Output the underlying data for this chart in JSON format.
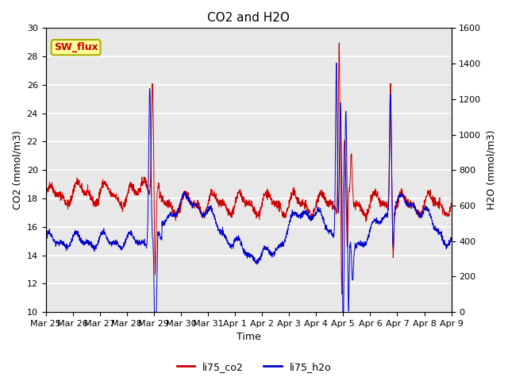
{
  "title": "CO2 and H2O",
  "xlabel": "Time",
  "ylabel_left": "CO2 (mmol/m3)",
  "ylabel_right": "H2O (mmol/m3)",
  "ylim_left": [
    10,
    30
  ],
  "ylim_right": [
    0,
    1600
  ],
  "yticks_left": [
    10,
    12,
    14,
    16,
    18,
    20,
    22,
    24,
    26,
    28,
    30
  ],
  "yticks_right": [
    0,
    200,
    400,
    600,
    800,
    1000,
    1200,
    1400,
    1600
  ],
  "co2_color": "#cc0000",
  "h2o_color": "#0000cc",
  "plot_bg_color": "#e8e8e8",
  "annotation_text": "SW_flux",
  "annotation_color": "#cc0000",
  "annotation_bg": "#ffff99",
  "annotation_border": "#aaaa00",
  "legend_co2": "li75_co2",
  "legend_h2o": "li75_h2o",
  "date_labels": [
    "Mar 25",
    "Mar 26",
    "Mar 27",
    "Mar 28",
    "Mar 29",
    "Mar 30",
    "Mar 31",
    "Apr 1",
    "Apr 2",
    "Apr 3",
    "Apr 4",
    "Apr 5",
    "Apr 6",
    "Apr 7",
    "Apr 8",
    "Apr 9"
  ],
  "n_points": 2016,
  "seed": 42
}
